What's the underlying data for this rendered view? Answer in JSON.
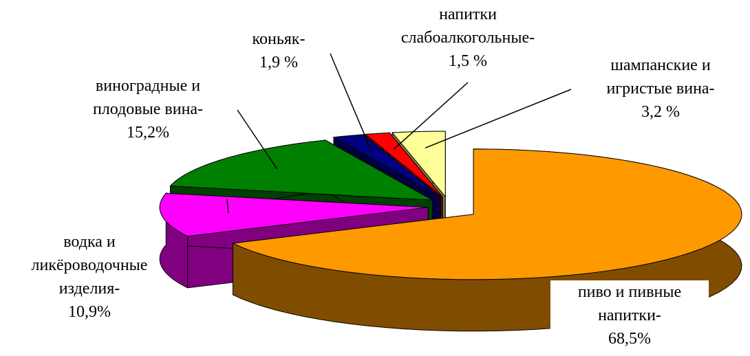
{
  "chart_data": {
    "type": "pie3d",
    "categories": [
      "пиво и пивные напитки-",
      "водка и ликёроводочные изделия-",
      "виноградные и плодовые вина-",
      "коньяк-",
      "напитки слабоалкогольные-",
      "шампанские и игристые вина-"
    ],
    "values": [
      68.5,
      10.9,
      15.2,
      1.9,
      1.5,
      3.2
    ],
    "value_labels": [
      "68,5%",
      "10,9%",
      "15,2%",
      "1,9 %",
      "1,5 %",
      "3,2 %"
    ],
    "colors": [
      "#ff9900",
      "#ff00ff",
      "#008000",
      "#000080",
      "#ff0000",
      "#ffff99"
    ]
  }
}
